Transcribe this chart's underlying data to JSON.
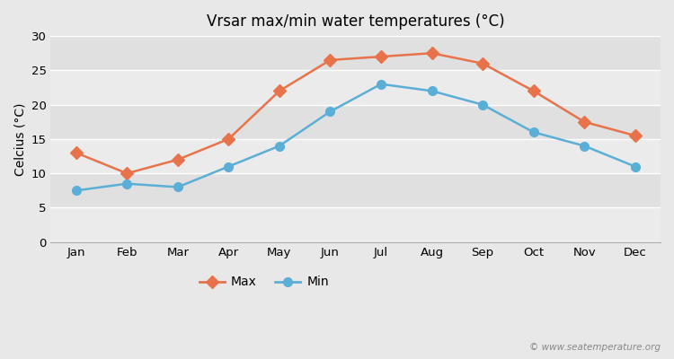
{
  "title": "Vrsar max/min water temperatures (°C)",
  "ylabel": "Celcius (°C)",
  "months": [
    "Jan",
    "Feb",
    "Mar",
    "Apr",
    "May",
    "Jun",
    "Jul",
    "Aug",
    "Sep",
    "Oct",
    "Nov",
    "Dec"
  ],
  "max_temps": [
    13,
    10,
    12,
    15,
    22,
    26.5,
    27,
    27.5,
    26,
    22,
    17.5,
    15.5
  ],
  "min_temps": [
    7.5,
    8.5,
    8,
    11,
    14,
    19,
    23,
    22,
    20,
    16,
    14,
    11
  ],
  "max_color": "#e8734a",
  "min_color": "#5bafd6",
  "fig_bg_color": "#e8e8e8",
  "plot_bg_color": "#ebebeb",
  "band_color_dark": "#e0e0e0",
  "band_color_light": "#ebebeb",
  "grid_color": "#ffffff",
  "ylim": [
    0,
    30
  ],
  "yticks": [
    0,
    5,
    10,
    15,
    20,
    25,
    30
  ],
  "watermark": "© www.seatemperature.org",
  "legend_max": "Max",
  "legend_min": "Min"
}
